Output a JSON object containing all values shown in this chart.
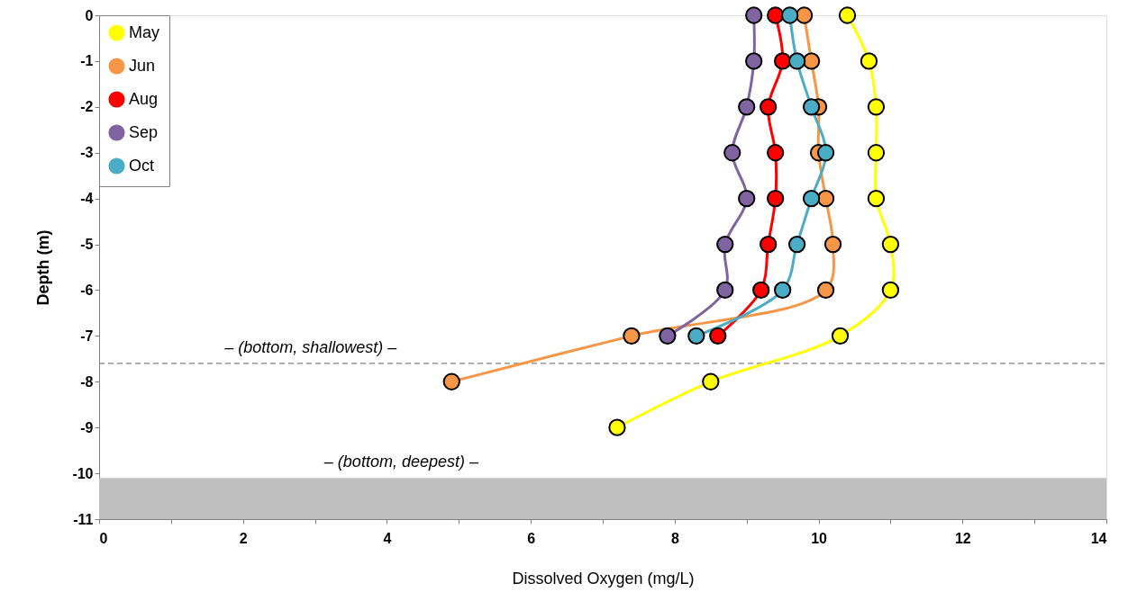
{
  "chart_data": {
    "type": "line",
    "xlabel": "Dissolved Oxygen (mg/L)",
    "ylabel": "Depth (m)",
    "series": [
      {
        "name": "May",
        "color": "#ffff00",
        "x": [
          10.4,
          10.7,
          10.8,
          10.8,
          10.8,
          11.0,
          11.0,
          10.3,
          8.5,
          7.2
        ],
        "values": [
          0,
          -1,
          -2,
          -3,
          -4,
          -5,
          -6,
          -7,
          -8,
          -9
        ]
      },
      {
        "name": "Jun",
        "color": "#f79646",
        "x": [
          9.8,
          9.9,
          10.0,
          10.0,
          10.1,
          10.2,
          10.1,
          7.4,
          4.9
        ],
        "values": [
          0,
          -1,
          -2,
          -3,
          -4,
          -5,
          -6,
          -7,
          -8
        ]
      },
      {
        "name": "Aug",
        "color": "#ff0000",
        "x": [
          9.4,
          9.5,
          9.3,
          9.4,
          9.4,
          9.3,
          9.2,
          8.6
        ],
        "values": [
          0,
          -1,
          -2,
          -3,
          -4,
          -5,
          -6,
          -7
        ]
      },
      {
        "name": "Sep",
        "color": "#8064a2",
        "x": [
          9.1,
          9.1,
          9.0,
          8.8,
          9.0,
          8.7,
          8.7,
          7.9
        ],
        "values": [
          0,
          -1,
          -2,
          -3,
          -4,
          -5,
          -6,
          -7
        ]
      },
      {
        "name": "Oct",
        "color": "#4bacc6",
        "x": [
          9.6,
          9.7,
          9.9,
          10.1,
          9.9,
          9.7,
          9.5,
          8.3
        ],
        "values": [
          0,
          -1,
          -2,
          -3,
          -4,
          -5,
          -6,
          -7
        ]
      }
    ],
    "xlim": [
      0,
      14
    ],
    "xticks": [
      0,
      {
        "value": 1,
        "label": null
      },
      2,
      {
        "value": 3,
        "label": null
      },
      4,
      {
        "value": 5,
        "label": null
      },
      6,
      {
        "value": 7,
        "label": null
      },
      8,
      {
        "value": 9,
        "label": null
      },
      10,
      {
        "value": 11,
        "label": null
      },
      12,
      {
        "value": 13,
        "label": null
      },
      14
    ],
    "ylim": [
      -11,
      0
    ],
    "yticks": [
      0,
      -1,
      -2,
      -3,
      -4,
      -5,
      -6,
      -7,
      -8,
      -9,
      -10,
      -11
    ],
    "ref_lines": [
      {
        "axis": "y",
        "value": -7.6,
        "color": "#808080",
        "line_style": "dashed",
        "label": "– (bottom, shallowest) –"
      }
    ],
    "bands": [
      {
        "axis": "y",
        "from": -10.1,
        "to": -11,
        "color": "#bfbfbf",
        "label": "– (bottom, deepest) –"
      }
    ],
    "legend": "top left",
    "marker": "circle",
    "line_style": "solid",
    "grid": false
  }
}
